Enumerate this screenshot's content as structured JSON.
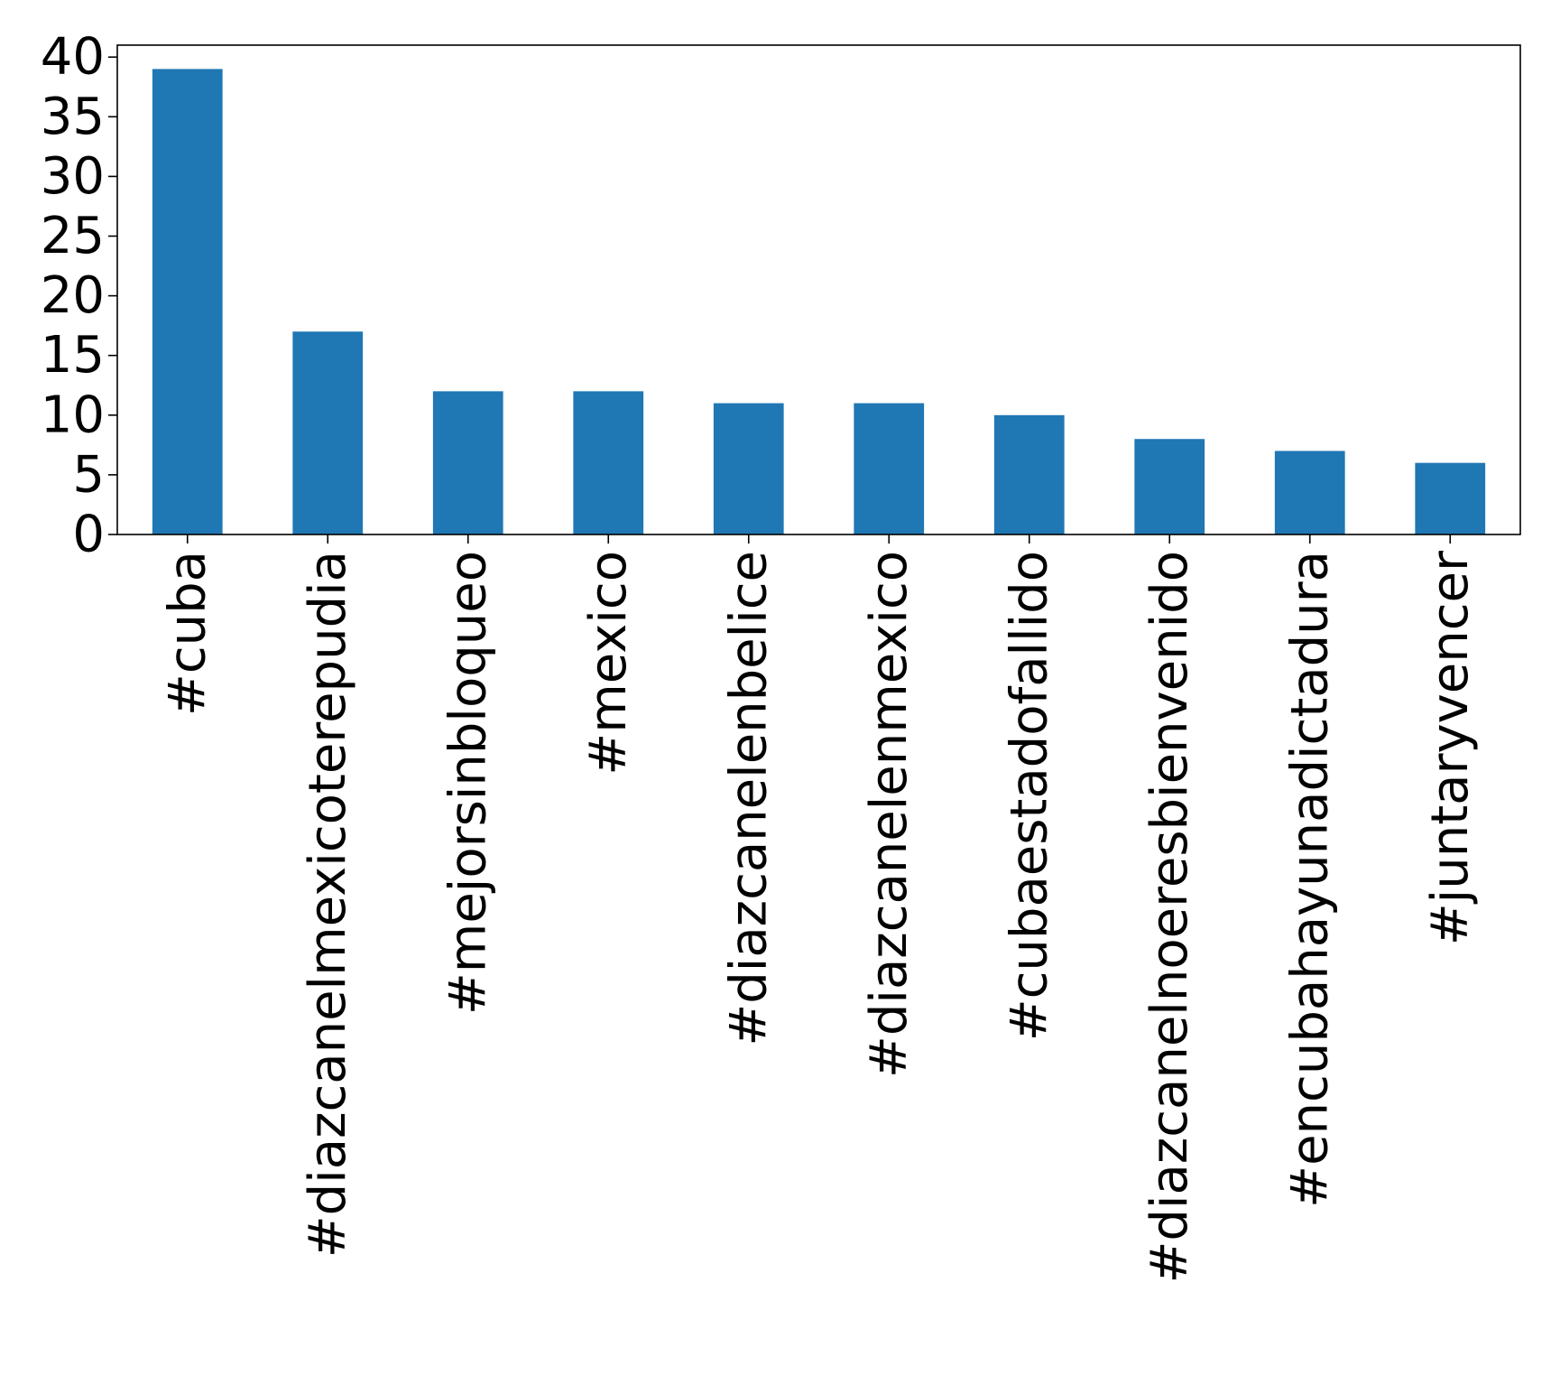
{
  "chart_data": {
    "type": "bar",
    "title": "",
    "xlabel": "",
    "ylabel": "",
    "categories": [
      "#cuba",
      "#diazcanelmexicoterepudia",
      "#mejorsinbloqueo",
      "#mexico",
      "#diazcanelenbelice",
      "#diazcanelenmexico",
      "#cubaestadofallido",
      "#diazcanelnoeresbienvenido",
      "#encubahayunadictadura",
      "#juntaryvencer"
    ],
    "values": [
      39,
      17,
      12,
      12,
      11,
      11,
      10,
      8,
      7,
      6
    ],
    "ylim": [
      0,
      41
    ],
    "yticks": [
      0,
      5,
      10,
      15,
      20,
      25,
      30,
      35,
      40
    ],
    "ytick_labels": [
      "0",
      "5",
      "10",
      "15",
      "20",
      "25",
      "30",
      "35",
      "40"
    ],
    "bar_color": "#1f77b4",
    "grid": false,
    "legend": "none"
  }
}
